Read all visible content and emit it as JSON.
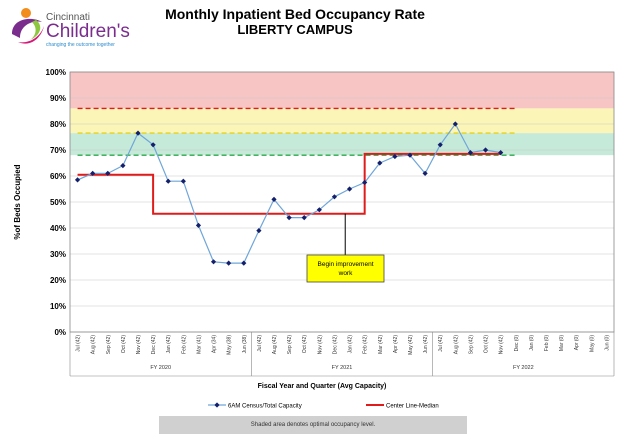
{
  "brand": {
    "name_top": "Cincinnati",
    "name_main": "Children's",
    "tagline": "changing the outcome together",
    "colors": {
      "purple": "#7b2d8e",
      "magenta": "#d6177a",
      "orange": "#f28c1a",
      "green": "#8dc63f",
      "blue": "#2b8ccf"
    }
  },
  "header": {
    "title": "Monthly Inpatient Bed Occupancy Rate",
    "subtitle": "LIBERTY CAMPUS"
  },
  "footnote": "Shaded area denotes optimal occupancy level.",
  "chart_data": {
    "type": "line",
    "ylabel": "%of Beds Occupied",
    "xlabel": "Fiscal Year and Quarter (Avg Capacity)",
    "ylim": [
      0,
      100
    ],
    "yticks": [
      "0%",
      "10%",
      "20%",
      "30%",
      "40%",
      "50%",
      "60%",
      "70%",
      "80%",
      "90%",
      "100%"
    ],
    "grid": true,
    "legend_position": "bottom",
    "categories": [
      "Jul (42)",
      "Aug (42)",
      "Sep (42)",
      "Oct (42)",
      "Nov (42)",
      "Dec (42)",
      "Jan (42)",
      "Feb (42)",
      "Mar (41)",
      "Apr (34)",
      "May (38)",
      "Jun (38)",
      "Jul (42)",
      "Aug (42)",
      "Sep (42)",
      "Oct (42)",
      "Nov (42)",
      "Dec (42)",
      "Jan (42)",
      "Feb (42)",
      "Mar (42)",
      "Apr (42)",
      "May (42)",
      "Jun (42)",
      "Jul (42)",
      "Aug (42)",
      "Sep (42)",
      "Oct (42)",
      "Nov (42)",
      "Dec (0)",
      "Jan (0)",
      "Feb (0)",
      "Mar (0)",
      "Apr (0)",
      "May (0)",
      "Jun (0)"
    ],
    "fiscal_years": [
      {
        "label": "FY 2020",
        "start": 0,
        "end": 11
      },
      {
        "label": "FY 2021",
        "start": 12,
        "end": 23
      },
      {
        "label": "FY 2022",
        "start": 24,
        "end": 35
      }
    ],
    "bands": [
      {
        "from": 86,
        "to": 100,
        "color": "#f8c5c5"
      },
      {
        "from": 76.5,
        "to": 86,
        "color": "#fbf6b8"
      },
      {
        "from": 68,
        "to": 76.5,
        "color": "#c6ead9"
      }
    ],
    "reference_lines": [
      {
        "value": 86,
        "color": "#e01b1b"
      },
      {
        "value": 76.5,
        "color": "#e6d21a"
      },
      {
        "value": 68,
        "color": "#2aa84a"
      }
    ],
    "series": [
      {
        "name": "6AM Census/Total Capacity",
        "color": "#6fa6d9",
        "marker_color": "#14206b",
        "values": [
          58.5,
          61,
          61,
          64,
          76.5,
          72,
          58,
          58,
          41,
          27,
          26.5,
          26.5,
          39,
          51,
          44,
          44,
          47,
          52,
          55,
          57.5,
          65,
          67.5,
          68,
          61,
          72,
          80,
          69,
          70,
          69,
          null,
          null,
          null,
          null,
          null,
          null,
          null
        ]
      },
      {
        "name": "Center Line-Median",
        "color": "#e01b1b",
        "segments": [
          {
            "from": 0,
            "to": 5,
            "value": 60.5
          },
          {
            "from": 6,
            "to": 19,
            "value": 45.5
          },
          {
            "from": 20,
            "to": 28,
            "value": 68.5
          }
        ]
      }
    ],
    "annotation": {
      "text_line1": "Begin improvement",
      "text_line2": "work",
      "points_to_index": 19.5
    }
  }
}
